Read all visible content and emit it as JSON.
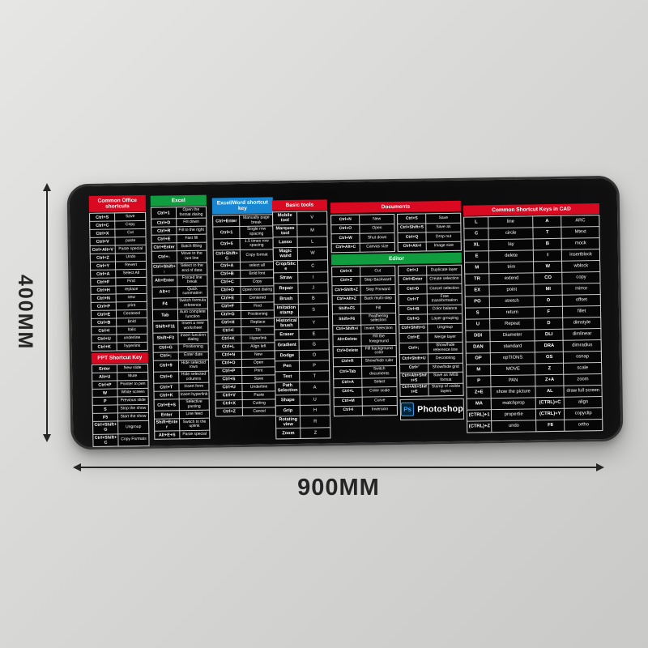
{
  "dimensions": {
    "width_label": "900MM",
    "height_label": "400MM"
  },
  "brand": {
    "logo_text": "Ps",
    "name": "Photoshop"
  },
  "colors": {
    "red": "#d80920",
    "green": "#0f9d3f",
    "blue": "#1787d4"
  },
  "panels": [
    {
      "name": "office",
      "blocks": [
        {
          "type": "header",
          "label": "Common Office shortcuts",
          "color": "red"
        },
        {
          "type": "pairs",
          "rows": [
            [
              "Ctrl+S",
              "Save"
            ],
            [
              "Ctrl+C",
              "Copy"
            ],
            [
              "Ctrl+X",
              "Cut"
            ],
            [
              "Ctrl+V",
              "paste"
            ],
            [
              "Ctrl+Alt+V",
              "Paste special"
            ],
            [
              "Ctrl+Z",
              "Undo"
            ],
            [
              "Ctrl+Y",
              "Revert"
            ],
            [
              "Ctrl+A",
              "Select All"
            ],
            [
              "Ctrl+F",
              "Find"
            ],
            [
              "Ctrl+H",
              "replace"
            ],
            [
              "Ctrl+N",
              "new"
            ],
            [
              "Ctrl+P",
              "print"
            ],
            [
              "Ctrl+E",
              "Centered"
            ],
            [
              "Ctrl+B",
              "Bold"
            ],
            [
              "Ctrl+I",
              "Italic"
            ],
            [
              "Ctrl+U",
              "underline"
            ],
            [
              "Ctrl+K",
              "hyperlink"
            ]
          ]
        },
        {
          "type": "header",
          "label": "PPT Shortcut Key",
          "color": "red"
        },
        {
          "type": "pairs",
          "rows": [
            [
              "Enter",
              "New slide"
            ],
            [
              "Alt+U",
              "Mute"
            ],
            [
              "Ctrl+P",
              "Pointer to pen"
            ],
            [
              "W",
              "White screen"
            ],
            [
              "P",
              "Previous slide"
            ],
            [
              "S",
              "Stop the show"
            ],
            [
              "F5",
              "Start the show"
            ],
            [
              "Ctrl+Shift+G",
              "Ungroup"
            ],
            [
              "Ctrl+Shift+C",
              "Copy Formats"
            ]
          ]
        }
      ]
    },
    {
      "name": "excel",
      "blocks": [
        {
          "type": "header",
          "label": "Excel",
          "color": "green"
        },
        {
          "type": "pairs",
          "rows": [
            [
              "Ctrl+1",
              "Open the format dialog"
            ],
            [
              "Ctrl+D",
              "Fill down"
            ],
            [
              "Ctrl+R",
              "Fill to the right"
            ],
            [
              "Ctrl+E",
              "Fast fill"
            ],
            [
              "Ctrl+Enter",
              "Batch filling"
            ],
            [
              "Ctrl+↓",
              "Move to the last line"
            ],
            [
              "Ctrl+Shift+↓",
              "Select to the end of data"
            ],
            [
              "Alt+Enter",
              "Forced line break"
            ],
            [
              "Alt+=",
              "Quick summation"
            ],
            [
              "F4",
              "Switch formula reference"
            ],
            [
              "Tab",
              "Auto complete function"
            ],
            [
              "Shift+F11",
              "Insert a new worksheet"
            ],
            [
              "Shift+F3",
              "Insert function dialog"
            ],
            [
              "Ctrl+G",
              "Positioning"
            ],
            [
              "Ctrl+;",
              "Enter date"
            ],
            [
              "Ctrl+9",
              "Hide selected rows"
            ],
            [
              "Ctrl+0",
              "Hide selected columns"
            ],
            [
              "Ctrl+T",
              "Insert form"
            ],
            [
              "Ctrl+K",
              "Insert hyperlink"
            ],
            [
              "Ctrl+E+S",
              "Selective pasting"
            ],
            [
              "Enter",
              "Line feed"
            ],
            [
              "Shift+Enter",
              "Switch to the uplink"
            ],
            [
              "Alt+E+S",
              "Paste special"
            ]
          ]
        }
      ]
    },
    {
      "name": "word",
      "blocks": [
        {
          "type": "header",
          "label": "Excel/Word shortcut key",
          "color": "blue"
        },
        {
          "type": "pairs",
          "rows": [
            [
              "Ctrl+Enter",
              "Manually page break"
            ],
            [
              "Ctrl+1",
              "Single row spacing"
            ],
            [
              "Ctrl+5",
              "1.5 times row spacing"
            ],
            [
              "Ctrl+Shift+C",
              "Copy format"
            ],
            [
              "Ctrl+A",
              "select all"
            ],
            [
              "Ctrl+B",
              "Bold font"
            ],
            [
              "Ctrl+C",
              "Copy"
            ],
            [
              "Ctrl+D",
              "Open font dialog"
            ],
            [
              "Ctrl+E",
              "Centered"
            ],
            [
              "Ctrl+F",
              "Find"
            ],
            [
              "Ctrl+G",
              "Positioning"
            ],
            [
              "Ctrl+H",
              "Replace"
            ],
            [
              "Ctrl+I",
              "Tilt"
            ],
            [
              "Ctrl+K",
              "Hyperlink"
            ],
            [
              "Ctrl+L",
              "Align left"
            ],
            [
              "Ctrl+N",
              "New"
            ],
            [
              "Ctrl+O",
              "Open"
            ],
            [
              "Ctrl+P",
              "Print"
            ],
            [
              "Ctrl+S",
              "Save"
            ],
            [
              "Ctrl+U",
              "Underline"
            ],
            [
              "Ctrl+V",
              "Paste"
            ],
            [
              "Ctrl+X",
              "Cutting"
            ],
            [
              "Ctrl+Z",
              "Cancel"
            ]
          ]
        }
      ]
    },
    {
      "name": "tools",
      "blocks": [
        {
          "type": "header",
          "label": "Basic tools",
          "color": "red"
        },
        {
          "type": "pairs",
          "rows": [
            [
              "Mobile tool",
              "V"
            ],
            [
              "Marquee tool",
              "M"
            ],
            [
              "Lasso",
              "L"
            ],
            [
              "Magic wand",
              "W"
            ],
            [
              "Crop/Slice",
              "C"
            ],
            [
              "Straw",
              "I"
            ],
            [
              "Repair",
              "J"
            ],
            [
              "Brush",
              "B"
            ],
            [
              "Imitation stamp",
              "S"
            ],
            [
              "Historical brush",
              "Y"
            ],
            [
              "Eraser",
              "E"
            ],
            [
              "Gradient",
              "G"
            ],
            [
              "Dodge",
              "O"
            ],
            [
              "Pen",
              "P"
            ],
            [
              "Text",
              "T"
            ],
            [
              "Path Selection",
              "A"
            ],
            [
              "Shape",
              "U"
            ],
            [
              "Grip",
              "H"
            ],
            [
              "Rotating view",
              "R"
            ],
            [
              "Zoom",
              "Z"
            ]
          ]
        }
      ]
    },
    {
      "name": "psdoc",
      "blocks": [
        {
          "type": "header",
          "label": "Documents",
          "color": "red"
        },
        {
          "type": "split",
          "left": [
            {
              "type": "pairs",
              "rows": [
                [
                  "Ctrl+N",
                  "New"
                ],
                [
                  "Ctrl+O",
                  "Open"
                ],
                [
                  "Ctrl+W",
                  "Shut down"
                ],
                [
                  "Ctrl+Alt+C",
                  "Canvas size"
                ]
              ]
            }
          ],
          "right": [
            {
              "type": "pairs",
              "rows": [
                [
                  "Ctrl+S",
                  "Save"
                ],
                [
                  "Ctrl+Shift+S",
                  "Save as"
                ],
                [
                  "Ctrl+Q",
                  "Drop out"
                ],
                [
                  "Ctrl+Alt+I",
                  "Image size"
                ]
              ]
            }
          ]
        },
        {
          "type": "header",
          "label": "Editor",
          "color": "green"
        },
        {
          "type": "split",
          "left": [
            {
              "type": "pairs",
              "rows": [
                [
                  "Ctrl+X",
                  "Cut"
                ],
                [
                  "Ctrl+Z",
                  "Step Backward"
                ],
                [
                  "Ctrl+Shift+Z",
                  "Step Forward"
                ],
                [
                  "Ctrl+Alt+Z",
                  "Back multi-step"
                ],
                [
                  "Shift+F5",
                  "Fill"
                ],
                [
                  "Shift+F6",
                  "Feathering selection"
                ],
                [
                  "Ctrl+Shift+I",
                  "Invert Selection"
                ],
                [
                  "Alt+Delete",
                  "Fill the foreground"
                ],
                [
                  "Ctrl+Delete",
                  "Fill background color"
                ],
                [
                  "Ctrl+R",
                  "Show/hide ruler"
                ],
                [
                  "Ctrl+Tab",
                  "Switch documents"
                ],
                [
                  "Ctrl+A",
                  "Select"
                ],
                [
                  "Ctrl+L",
                  "Color scale"
                ],
                [
                  "Ctrl+M",
                  "Curve"
                ],
                [
                  "Ctrl+I",
                  "Inversion"
                ]
              ]
            }
          ],
          "right": [
            {
              "type": "pairs",
              "rows": [
                [
                  "Ctrl+J",
                  "Duplicate layer"
                ],
                [
                  "Ctrl+Enter",
                  "Create selection"
                ],
                [
                  "Ctrl+D",
                  "Cancel selection"
                ],
                [
                  "Ctrl+T",
                  "Free transformation"
                ],
                [
                  "Ctrl+B",
                  "Color balance"
                ],
                [
                  "Ctrl+G",
                  "Layer grouping"
                ],
                [
                  "Ctrl+Shift+G",
                  "Ungroup"
                ],
                [
                  "Ctrl+E",
                  "Merge layer"
                ],
                [
                  "Ctrl+;",
                  "Show/hide reference line"
                ],
                [
                  "Ctrl+Shift+U",
                  "Decoloring"
                ],
                [
                  "Ctrl+'",
                  "Show/hide grid"
                ],
                [
                  "Ctrl+Alt+Shift+S",
                  "Save as WEB format"
                ],
                [
                  "Ctrl+Alt+Shift+E",
                  "Stamp of visible layers"
                ]
              ]
            },
            {
              "type": "logo"
            }
          ]
        }
      ]
    },
    {
      "name": "cad",
      "blocks": [
        {
          "type": "header",
          "label": "Common Shortcut Keys in CAD",
          "color": "red"
        },
        {
          "type": "quad",
          "rows": [
            [
              "L",
              "line",
              "A",
              "ARC"
            ],
            [
              "C",
              "circle",
              "T",
              "Mtext"
            ],
            [
              "XL",
              "lay",
              "B",
              "mock"
            ],
            [
              "E",
              "delete",
              "I",
              "insertblock"
            ],
            [
              "M",
              "trim",
              "W",
              "wblock"
            ],
            [
              "TR",
              "extend",
              "CO",
              "copy"
            ],
            [
              "EX",
              "point",
              "MI",
              "mirror"
            ],
            [
              "PO",
              "stretch",
              "O",
              "offset"
            ],
            [
              "S",
              "return",
              "F",
              "fillet"
            ],
            [
              "U",
              "Repeat",
              "D",
              "dimstyle"
            ],
            [
              "DDI",
              "Diameter",
              "DLI",
              "dimlinear"
            ],
            [
              "DAN",
              "standard",
              "DRA",
              "dimradius"
            ],
            [
              "OP",
              "opTIONS",
              "OS",
              "osnap"
            ],
            [
              "M",
              "MOVE",
              "Z",
              "scale"
            ],
            [
              "P",
              "PAN",
              "Z+A",
              "zoom"
            ],
            [
              "Z+E",
              "show the picture",
              "AL",
              "draw full screen"
            ],
            [
              "MA",
              "matchprop",
              "(CTRL)+C",
              "align"
            ],
            [
              "(CTRL)+1",
              "propertie",
              "(CTRL)+Y",
              "copyclip"
            ],
            [
              "(CTRL)+Z",
              "undo",
              "F8",
              "ortho"
            ]
          ]
        }
      ]
    }
  ]
}
